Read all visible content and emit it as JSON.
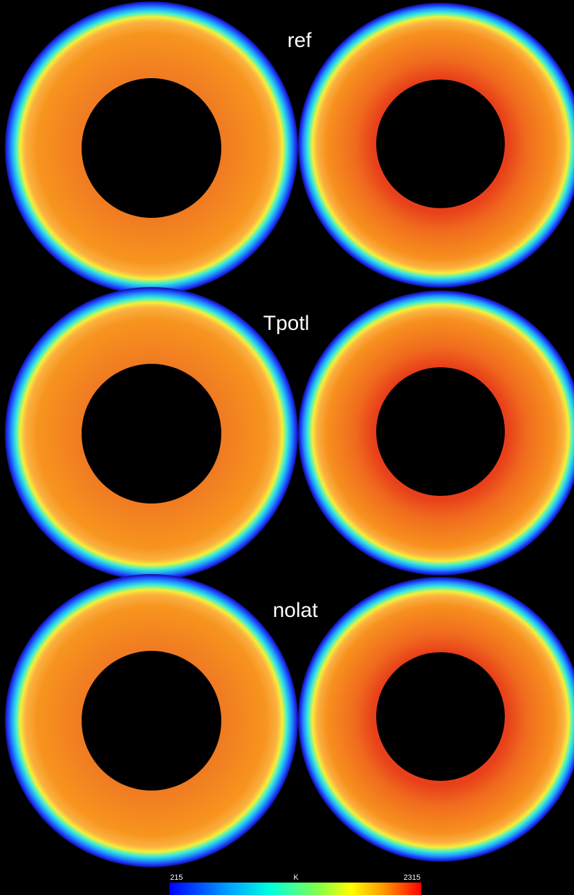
{
  "panels": [
    {
      "label": "ref"
    },
    {
      "label": "Tpotl"
    },
    {
      "label": "nolat"
    }
  ],
  "colorbar": {
    "min": 215,
    "unit": "K",
    "max": 2315
  }
}
